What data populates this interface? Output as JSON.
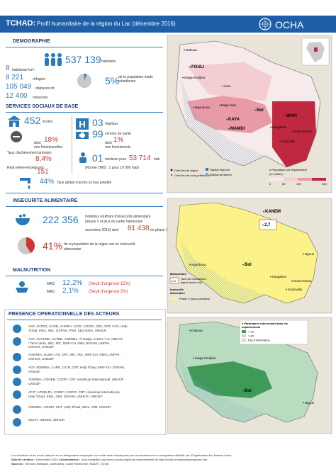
{
  "header": {
    "country": "TCHAD:",
    "title": "Profil humanitaire de la région du Lac (décembre 2016)",
    "logo": "OCHA"
  },
  "demographie": {
    "heading": "DEMOGRAPHIE",
    "population": "537 139",
    "population_unit": "habitants",
    "density": "8",
    "density_unit": "habitants/ km²",
    "refugees": "8 221",
    "refugees_label": "réfugiés",
    "displaced": "105 049",
    "displaced_label": "déplacés int.",
    "returnees": "12 400",
    "returnees_label": "retournés",
    "share": {
      "value": 5,
      "label": "5%"
    },
    "share_text": [
      "de la population totale",
      "tchadienne"
    ]
  },
  "services": {
    "heading": "SERVICES SOCIAUX DE BASE",
    "schools": "452",
    "schools_label": "écoles",
    "schools_dont": "dont",
    "schools_nf": "18%",
    "schools_nf_label": "non fonctionnelles",
    "completion_label": "Taux d'achèvement primaire:",
    "completion": "8,4%",
    "ratio_label": "Ratio élève-enseignant:",
    "ratio": "151",
    "hospitals": "03",
    "hospitals_label": "hôpitaux",
    "centres": "99",
    "centres_label": "centres de santé",
    "centres_dont": "dont",
    "centres_nf": "1%",
    "centres_nf_label": "non fonctionnels",
    "doctors": "01",
    "doctors_label": "médecin pour",
    "doctors_pop": "53 714",
    "doctors_unit": "hab",
    "norm": "(Norme OMS : 1 pour 10 000 hab)",
    "water": "44%",
    "water_label": "Taux global d'accès à l'eau potable"
  },
  "food": {
    "heading": "INSECURITE ALIMENTAIRE",
    "people": "222 356",
    "text": [
      "individus souffrant d'insécurité alimentaire",
      "(phase 2 et plus du cadre harmonisé",
      "novembre 2016) dont"
    ],
    "phase3": "81 438",
    "phase3_label": "en phase 3",
    "share": {
      "value": 41,
      "label": "41%"
    },
    "share_text": [
      "de la population de la région est en insécurité",
      "alimentaire"
    ]
  },
  "malnutrition": {
    "heading": "MALNUTRITION",
    "rows": [
      {
        "name": "MAG",
        "value": "12,2%",
        "threshold": "(Seuil d'urgence 15%)"
      },
      {
        "name": "MAS",
        "value": "2,1%",
        "threshold": "(Seuil d'urgence 2%)"
      }
    ]
  },
  "actors": {
    "heading": "PRESENCE OPERATIONNELLE DES ACTEURS",
    "rows": [
      [
        "ACF, ACTED, CARE, CHORA, CICR, COOPI, CRS, CRT, FAO, Help",
        "Tchad, IHDL, IMC, OXFAM, PAM, SECADEV, UNHCR"
      ],
      [
        "ACF, ACHUDE, ACTED, ADERBA, Al Nadja, ALIMA / AS, CELIAF",
        "/ Terre Verte, IMC, IRC, MSF-CH, OIM, OXFAM, UNFPA,",
        "UNHCR, UNICEF"
      ],
      [
        "ADERBA, ALIMA / AS, CRT, IMC, IRC, MSF-CH, OMS, UNFPA,",
        "UNHCR, UNICEF"
      ],
      [
        "ACF, ADERBA, CARE, CICR, CRT, Help Tchad, MSF-CH, OXFAM,",
        "UNICEF"
      ],
      [
        "ADERBA, COHEB, COOPI, CRT, Handicap International, UNHCR,",
        "UNICEF"
      ],
      [
        "AFJT, APSELPA, COOPI, COOPI, CRT, Handicap International,",
        "Help Tchad, IHDL, OIM, OXFAM, UNHCR, UNICEF"
      ],
      [
        "ADERBA, COOPI, CRT, Help Tchad, IHDL, OIM, UNHCR"
      ],
      [
        "OCHA, UNDSS, UNHCR"
      ]
    ]
  },
  "maps": [
    {
      "labels": [
        "Daboua",
        "FOULI",
        "Kaiga-Kindjiria",
        "Liwa",
        "Ngouboua",
        "Baga-Sola",
        "Bol",
        "KAYA",
        "MAMDI",
        "WAYI",
        "Kangalom",
        "Doum-Doum",
        "Kouloudia"
      ],
      "legend": [
        "Chef lieu de région",
        "Chef lieu de sous-préfecture",
        "Hôpital régional",
        "Hôpital de district",
        "# Population par département",
        "(en millier)"
      ],
      "scale": [
        "0",
        "50",
        "100",
        "250"
      ]
    },
    {
      "labels": [
        "KANEM",
        "2,7",
        "Ngouri",
        "Bol",
        "Kangalom",
        "Doum-Doum",
        "Kouloudia",
        "Ngouboua"
      ],
      "legend": [
        "Malnutrition",
        "X,X",
        "Taux de malnutrition",
        "aiguë sévère (%)",
        "Insécurité",
        "alimentaire",
        "Phase 2 (sous pression)"
      ]
    },
    {
      "labels": [
        "Daboua",
        "Kaiga-Kindjiria",
        "Bol",
        "Ngouri"
      ],
      "legend": [
        "# Partenaires intervenant dans les",
        "départements",
        "> 20",
        "1-20",
        "Pas d'information"
      ]
    }
  ],
  "footer": {
    "disclaimer": "Les frontières et les noms indiqués et les désignations employées sur cette carte n'impliquent pas reconnaissance ou acceptation officielle par l'Organisation des Nations Unies",
    "date_label": "Date de création :",
    "date": "8 décembre 2016",
    "comments_label": "Commentaires :",
    "comments": "ocha-tchad@un.org  www.unocha.org/tchad  www.reliefweb.int  http://tchad.humanitarianresponse.info",
    "sources_label": "Sources :",
    "sources": "Services étatiques, partenaires, Cadre Harmonisé, SMART, OCHA"
  }
}
